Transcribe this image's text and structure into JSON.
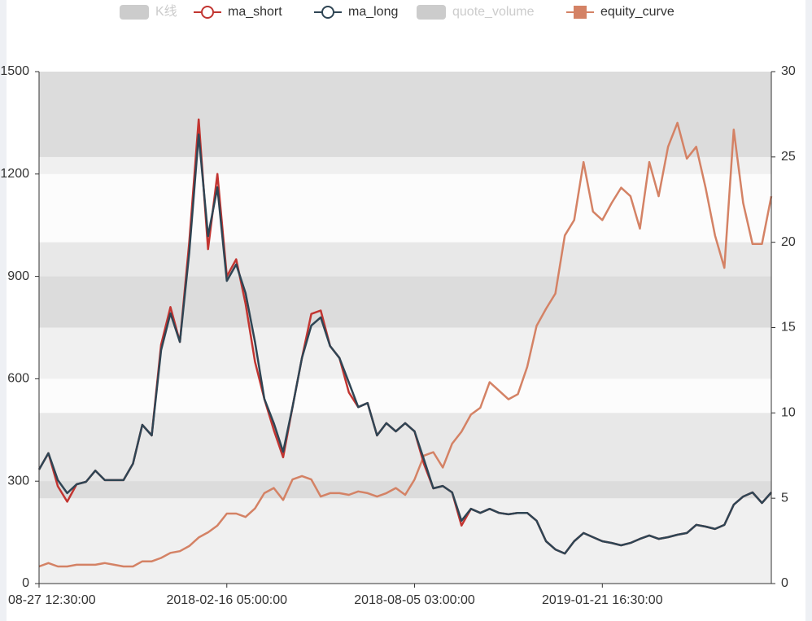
{
  "chart_data": {
    "type": "line",
    "categories": [
      "08-27 12:30:00",
      null,
      null,
      null,
      null,
      null,
      null,
      null,
      null,
      null,
      null,
      null,
      null,
      null,
      null,
      null,
      null,
      null,
      null,
      null,
      "2018-02-16 05:00:00",
      null,
      null,
      null,
      null,
      null,
      null,
      null,
      null,
      null,
      null,
      null,
      null,
      null,
      null,
      null,
      null,
      null,
      null,
      null,
      "2018-08-05 03:00:00",
      null,
      null,
      null,
      null,
      null,
      null,
      null,
      null,
      null,
      null,
      null,
      null,
      null,
      null,
      null,
      null,
      null,
      null,
      null,
      "2019-01-21 16:30:00",
      null,
      null,
      null,
      null,
      null,
      null,
      null,
      null,
      null,
      null,
      null,
      null,
      null,
      null,
      null,
      null,
      null,
      null
    ],
    "series": [
      {
        "name": "K线",
        "type": "candlestick",
        "visible": false
      },
      {
        "name": "ma_short",
        "color": "#c23531",
        "values": [
          334,
          382,
          285,
          240,
          291,
          298,
          331,
          303,
          303,
          303,
          351,
          465,
          434,
          700,
          810,
          708,
          1000,
          1360,
          980,
          1200,
          900,
          950,
          820,
          650,
          541,
          450,
          370,
          517,
          661,
          790,
          800,
          696,
          661,
          560,
          517,
          529,
          434,
          470,
          446,
          470,
          446,
          350,
          279,
          286,
          267,
          170,
          219,
          207,
          219,
          207,
          203,
          207,
          207,
          184,
          124,
          100,
          88,
          124,
          148,
          136,
          124,
          119,
          112,
          119,
          131,
          141,
          131,
          136,
          143,
          148,
          172,
          167,
          160,
          172,
          231,
          255,
          267,
          236,
          267
        ]
      },
      {
        "name": "ma_long",
        "color": "#2f4554",
        "values": [
          334,
          382,
          303,
          265,
          291,
          298,
          331,
          303,
          303,
          303,
          351,
          465,
          434,
          684,
          792,
          708,
          970,
          1316,
          1018,
          1161,
          887,
          935,
          851,
          708,
          541,
          470,
          386,
          517,
          661,
          756,
          780,
          696,
          661,
          589,
          517,
          529,
          434,
          470,
          446,
          470,
          446,
          363,
          279,
          286,
          267,
          184,
          219,
          207,
          219,
          207,
          203,
          207,
          207,
          184,
          124,
          100,
          88,
          124,
          148,
          136,
          124,
          119,
          112,
          119,
          131,
          141,
          131,
          136,
          143,
          148,
          172,
          167,
          160,
          172,
          231,
          255,
          267,
          236,
          267
        ]
      },
      {
        "name": "quote_volume",
        "type": "bar",
        "visible": false
      },
      {
        "name": "equity_curve",
        "color": "#d48265",
        "axis": "y2",
        "values": [
          1.0,
          1.2,
          1.0,
          1.0,
          1.1,
          1.1,
          1.1,
          1.2,
          1.1,
          1.0,
          1.0,
          1.3,
          1.3,
          1.5,
          1.8,
          1.9,
          2.2,
          2.7,
          3.0,
          3.4,
          4.1,
          4.1,
          3.9,
          4.4,
          5.3,
          5.6,
          4.9,
          6.1,
          6.3,
          6.1,
          5.1,
          5.3,
          5.3,
          5.2,
          5.4,
          5.3,
          5.1,
          5.3,
          5.6,
          5.2,
          6.1,
          7.5,
          7.7,
          6.8,
          8.2,
          8.9,
          9.9,
          10.3,
          11.8,
          11.3,
          10.8,
          11.1,
          12.7,
          15.1,
          16.1,
          17.0,
          20.4,
          21.3,
          24.7,
          21.8,
          21.3,
          22.3,
          23.2,
          22.7,
          20.8,
          24.7,
          22.7,
          25.6,
          27.0,
          24.9,
          25.6,
          23.2,
          20.4,
          18.5,
          26.6,
          22.3,
          19.9,
          19.9,
          22.7
        ]
      }
    ],
    "ylim": [
      0,
      1500
    ],
    "yticks": [
      0,
      300,
      600,
      900,
      1200,
      1500
    ],
    "y2lim": [
      0,
      30
    ],
    "y2ticks": [
      0,
      5,
      10,
      15,
      20,
      25,
      30
    ],
    "grid": true,
    "split_area": true
  }
}
